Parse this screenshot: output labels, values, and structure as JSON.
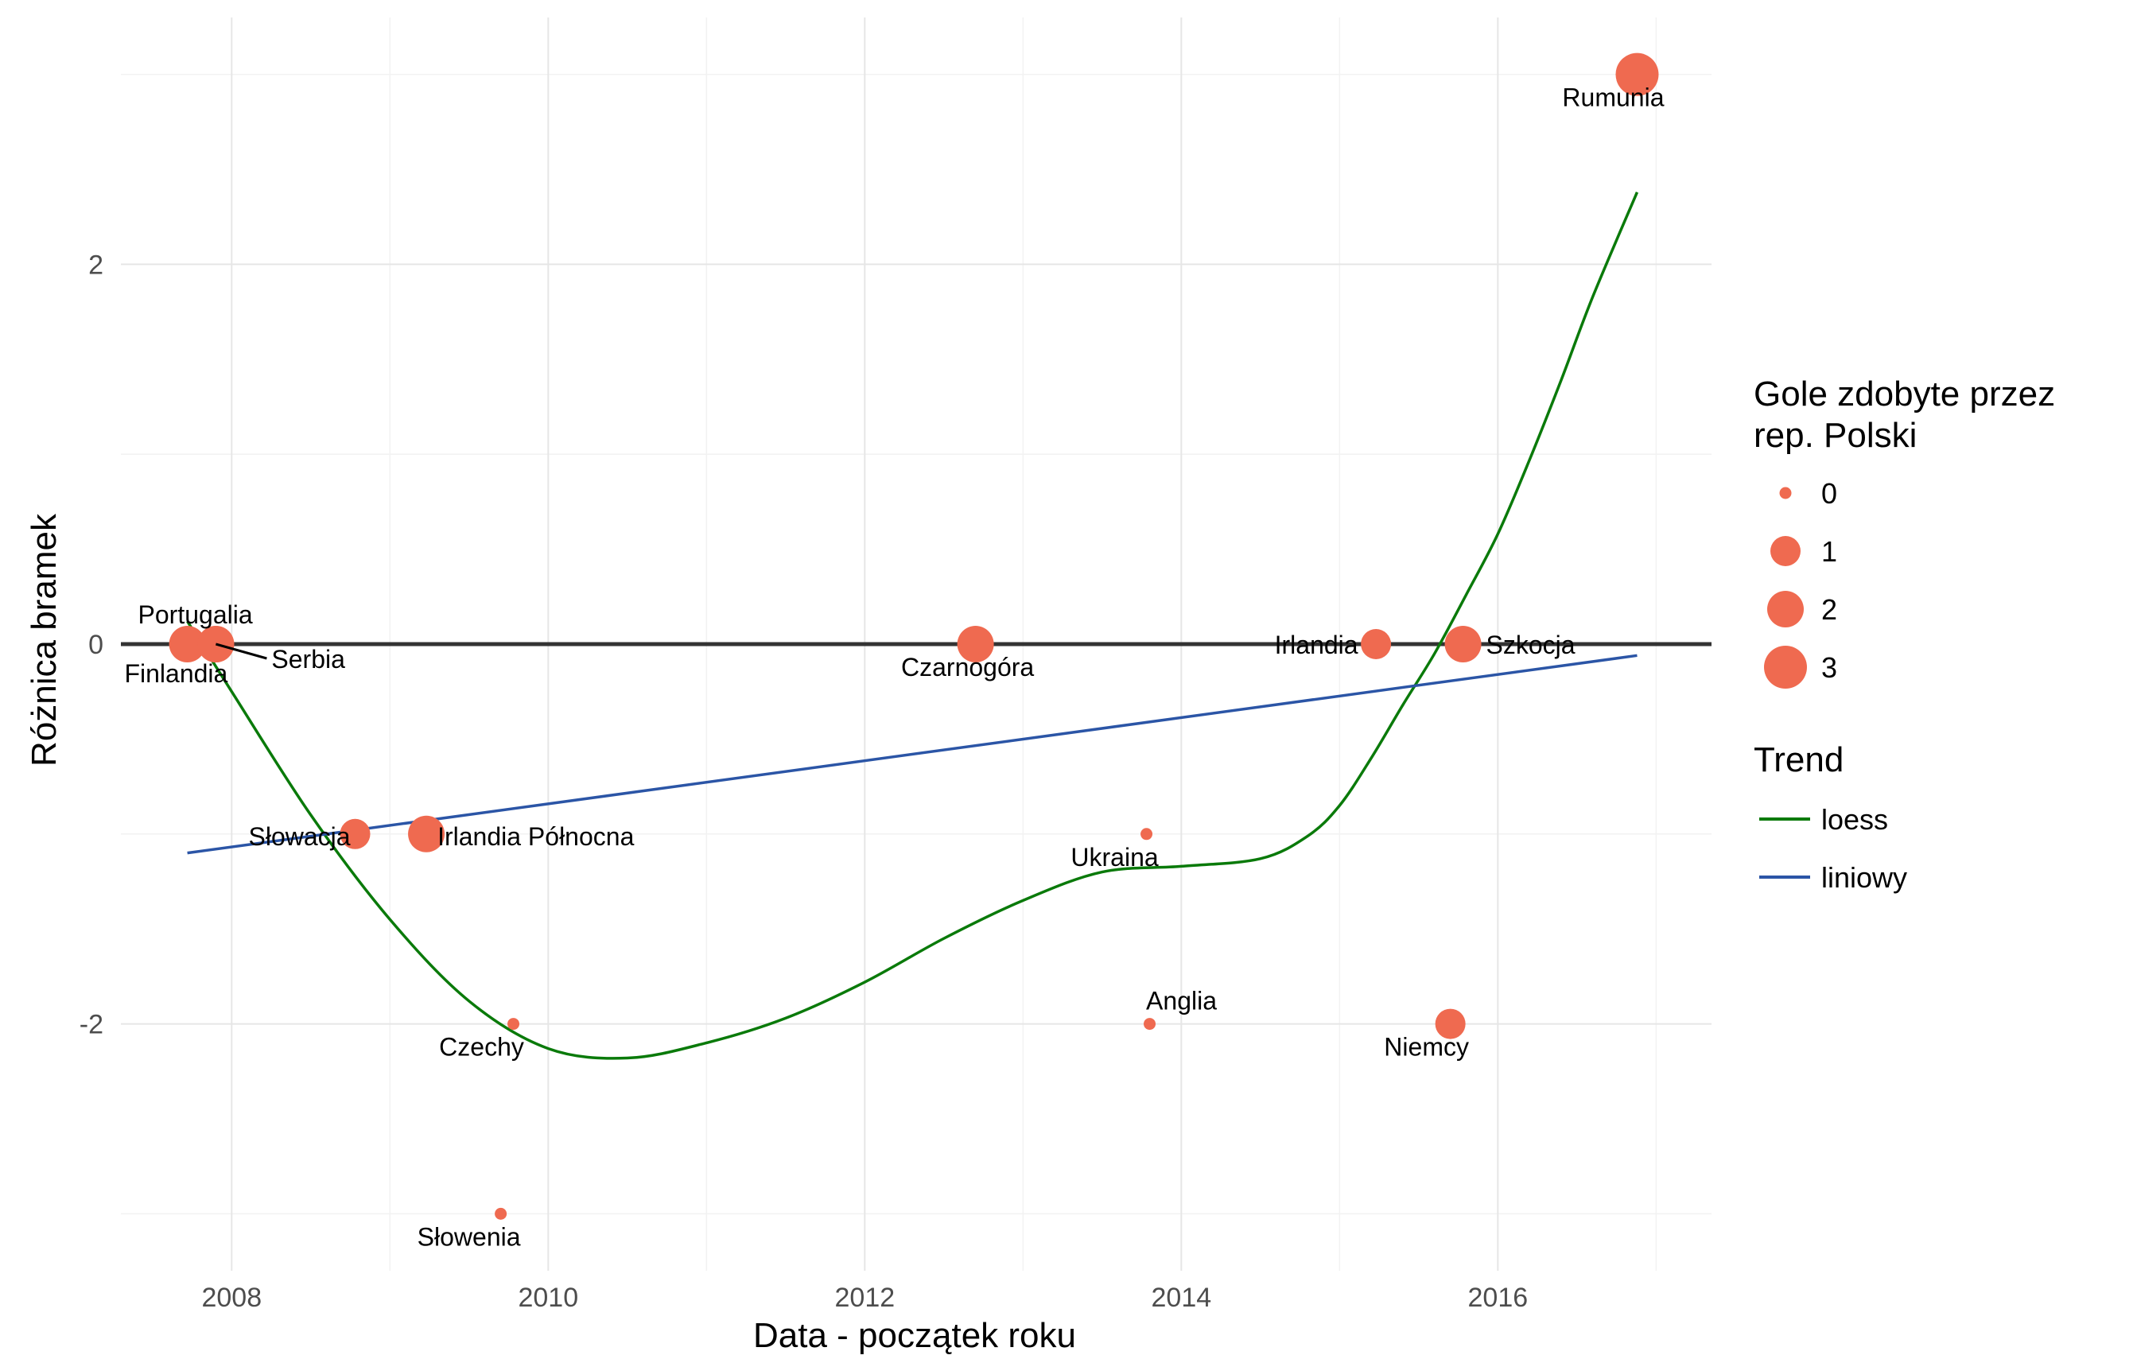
{
  "chart_data": {
    "type": "scatter",
    "xlabel": "Data - początek roku",
    "ylabel": "Różnica bramek",
    "x_ticks": [
      2008,
      2010,
      2012,
      2014,
      2016
    ],
    "y_ticks": [
      -2,
      0,
      2
    ],
    "xlim": [
      2007.3,
      2017.35
    ],
    "ylim": [
      -3.3,
      3.3
    ],
    "grid": true,
    "reference_line": 0,
    "colors": {
      "points": "#EF6A50",
      "loess": "#0A7A0A",
      "linear": "#2B55A6",
      "zero_line": "#333333",
      "grid": "#E6E6E6"
    },
    "points": [
      {
        "label": "Portugalia",
        "x": 2007.72,
        "y": 0,
        "goals": 2
      },
      {
        "label": "Finlandia",
        "x": 2007.9,
        "y": 0,
        "goals": 2
      },
      {
        "label": "Serbia",
        "x": 2007.9,
        "y": 0,
        "goals": 2
      },
      {
        "label": "Słowacja",
        "x": 2008.78,
        "y": -1,
        "goals": 1
      },
      {
        "label": "Irlandia Północna",
        "x": 2009.23,
        "y": -1,
        "goals": 2
      },
      {
        "label": "Słowenia",
        "x": 2009.7,
        "y": -3,
        "goals": 0
      },
      {
        "label": "Czechy",
        "x": 2009.78,
        "y": -2,
        "goals": 0
      },
      {
        "label": "Czarnogóra",
        "x": 2012.7,
        "y": 0,
        "goals": 2
      },
      {
        "label": "Ukraina",
        "x": 2013.78,
        "y": -1,
        "goals": 0
      },
      {
        "label": "Anglia",
        "x": 2013.8,
        "y": -2,
        "goals": 0
      },
      {
        "label": "Irlandia",
        "x": 2015.23,
        "y": 0,
        "goals": 1
      },
      {
        "label": "Niemcy",
        "x": 2015.7,
        "y": -2,
        "goals": 1
      },
      {
        "label": "Szkocja",
        "x": 2015.78,
        "y": 0,
        "goals": 2
      },
      {
        "label": "Rumunia",
        "x": 2016.88,
        "y": 3,
        "goals": 3
      }
    ],
    "series": [
      {
        "name": "loess",
        "x": [
          2007.72,
          2008.0,
          2008.5,
          2009.0,
          2009.5,
          2010.0,
          2010.5,
          2011.0,
          2011.5,
          2012.0,
          2012.5,
          2013.0,
          2013.5,
          2014.0,
          2014.5,
          2014.8,
          2015.0,
          2015.2,
          2015.4,
          2015.6,
          2015.8,
          2016.0,
          2016.2,
          2016.4,
          2016.6,
          2016.88
        ],
        "y": [
          0.12,
          -0.25,
          -0.9,
          -1.45,
          -1.88,
          -2.13,
          -2.18,
          -2.1,
          -1.97,
          -1.78,
          -1.55,
          -1.35,
          -1.2,
          -1.17,
          -1.13,
          -1.01,
          -0.85,
          -0.6,
          -0.32,
          -0.05,
          0.26,
          0.58,
          0.97,
          1.39,
          1.83,
          2.38
        ]
      },
      {
        "name": "liniowy",
        "x": [
          2007.72,
          2016.88
        ],
        "y": [
          -1.1,
          -0.06
        ]
      }
    ],
    "legend": {
      "size_title_line1": "Gole zdobyte przez",
      "size_title_line2": "rep. Polski",
      "sizes": [
        "0",
        "1",
        "2",
        "3"
      ],
      "trend_title": "Trend",
      "trend_items": [
        "loess",
        "liniowy"
      ]
    }
  }
}
